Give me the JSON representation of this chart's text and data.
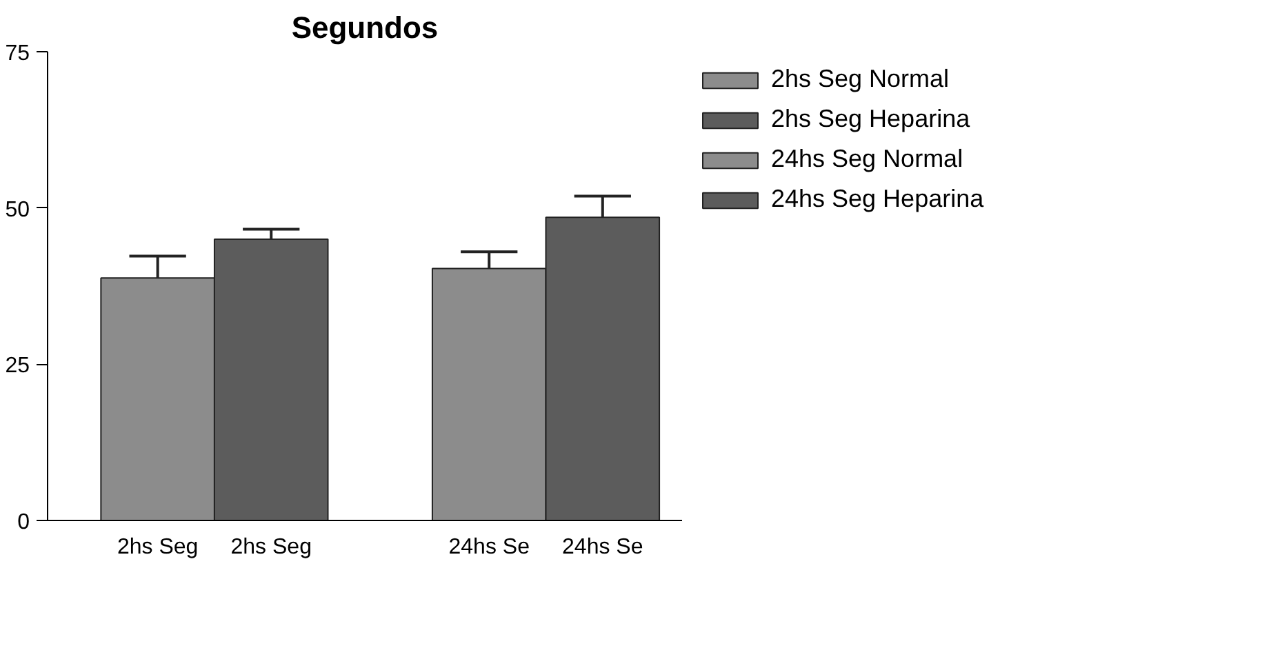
{
  "chart_data": {
    "type": "bar",
    "title": "Segundos",
    "categories": [
      "2hs Seg",
      "2hs Seg",
      "24hs Se",
      "24hs Se"
    ],
    "series": [
      {
        "name": "2hs Seg Normal",
        "color": "#8c8c8c",
        "values": [
          38.8,
          null,
          null,
          null
        ],
        "errors": [
          [
            38.8,
            42.3
          ],
          null,
          null,
          null
        ]
      },
      {
        "name": "2hs Seg Heparina",
        "color": "#5c5c5c",
        "values": [
          null,
          45.0,
          null,
          null
        ],
        "errors": [
          null,
          [
            45.0,
            46.6
          ],
          null,
          null
        ]
      },
      {
        "name": "24hs Seg Normal",
        "color": "#8c8c8c",
        "values": [
          null,
          null,
          40.3,
          null
        ],
        "errors": [
          null,
          null,
          [
            40.3,
            43.0
          ],
          null
        ]
      },
      {
        "name": "24hs Seg Heparina",
        "color": "#5c5c5c",
        "values": [
          null,
          null,
          null,
          48.5
        ],
        "errors": [
          null,
          null,
          null,
          [
            48.5,
            51.9
          ]
        ]
      }
    ],
    "ylim": [
      0,
      75
    ],
    "yticks": [
      0,
      25,
      50,
      75
    ],
    "grid": false,
    "legend": "right"
  }
}
